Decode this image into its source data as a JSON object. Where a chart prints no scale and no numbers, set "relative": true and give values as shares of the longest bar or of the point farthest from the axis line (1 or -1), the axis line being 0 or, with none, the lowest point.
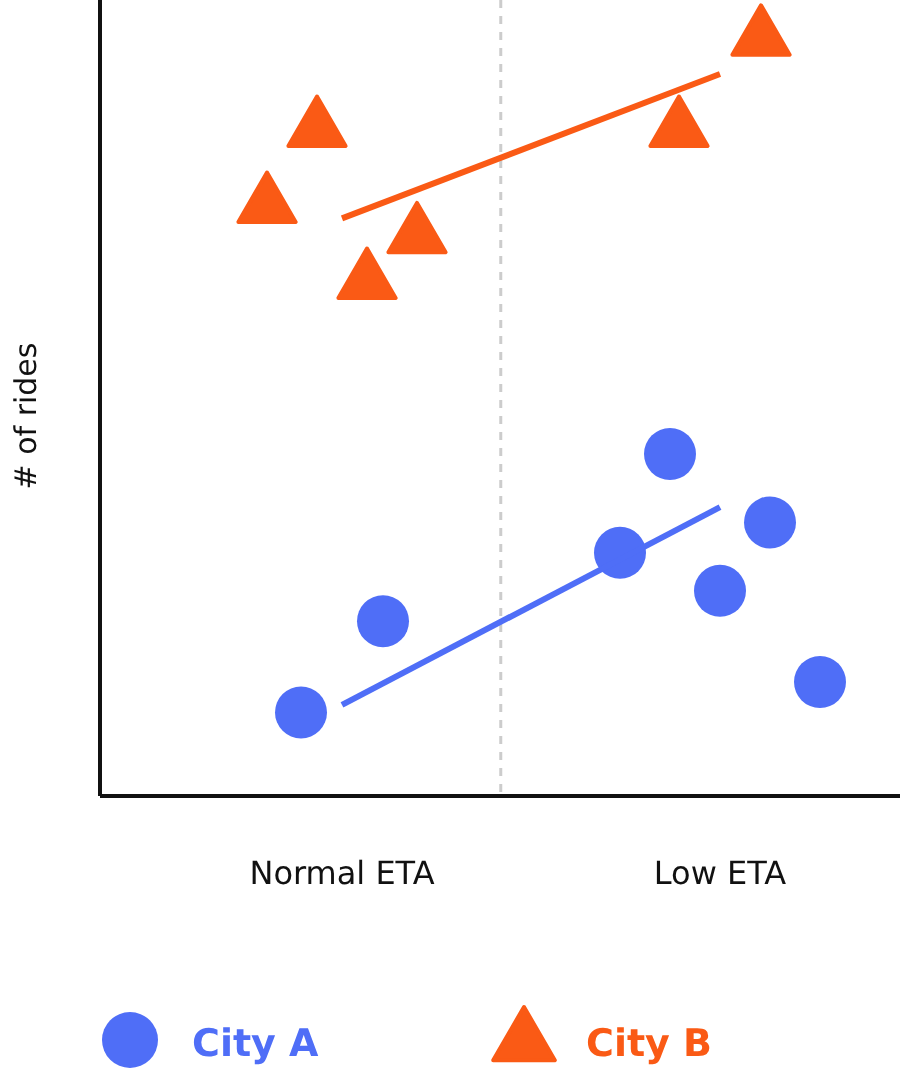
{
  "chart_data": {
    "type": "scatter",
    "ylabel": "# of rides",
    "relative": true,
    "categories": [
      "Normal ETA",
      "Low ETA"
    ],
    "legend": "bottom",
    "series": [
      {
        "name": "City A",
        "color": "#4f6ef7",
        "marker": "circle",
        "x": [
          "Normal ETA",
          "Normal ETA",
          "Low ETA",
          "Low ETA",
          "Low ETA",
          "Low ETA",
          "Low ETA"
        ],
        "values": [
          0.11,
          0.23,
          0.32,
          0.45,
          0.27,
          0.36,
          0.15
        ]
      },
      {
        "name": "City B",
        "color": "#fa5a15",
        "marker": "triangle",
        "x": [
          "Normal ETA",
          "Normal ETA",
          "Normal ETA",
          "Normal ETA",
          "Low ETA",
          "Low ETA"
        ],
        "values": [
          0.78,
          0.88,
          0.68,
          0.74,
          0.88,
          1
        ]
      },
      {
        "type": "line",
        "color": "#4f6ef7",
        "x": [
          "Normal ETA",
          "Low ETA"
        ],
        "values": [
          0.12,
          0.38
        ]
      },
      {
        "type": "line",
        "color": "#fa5a15",
        "x": [
          "Normal ETA",
          "Low ETA"
        ],
        "values": [
          0.76,
          0.95
        ]
      }
    ]
  }
}
